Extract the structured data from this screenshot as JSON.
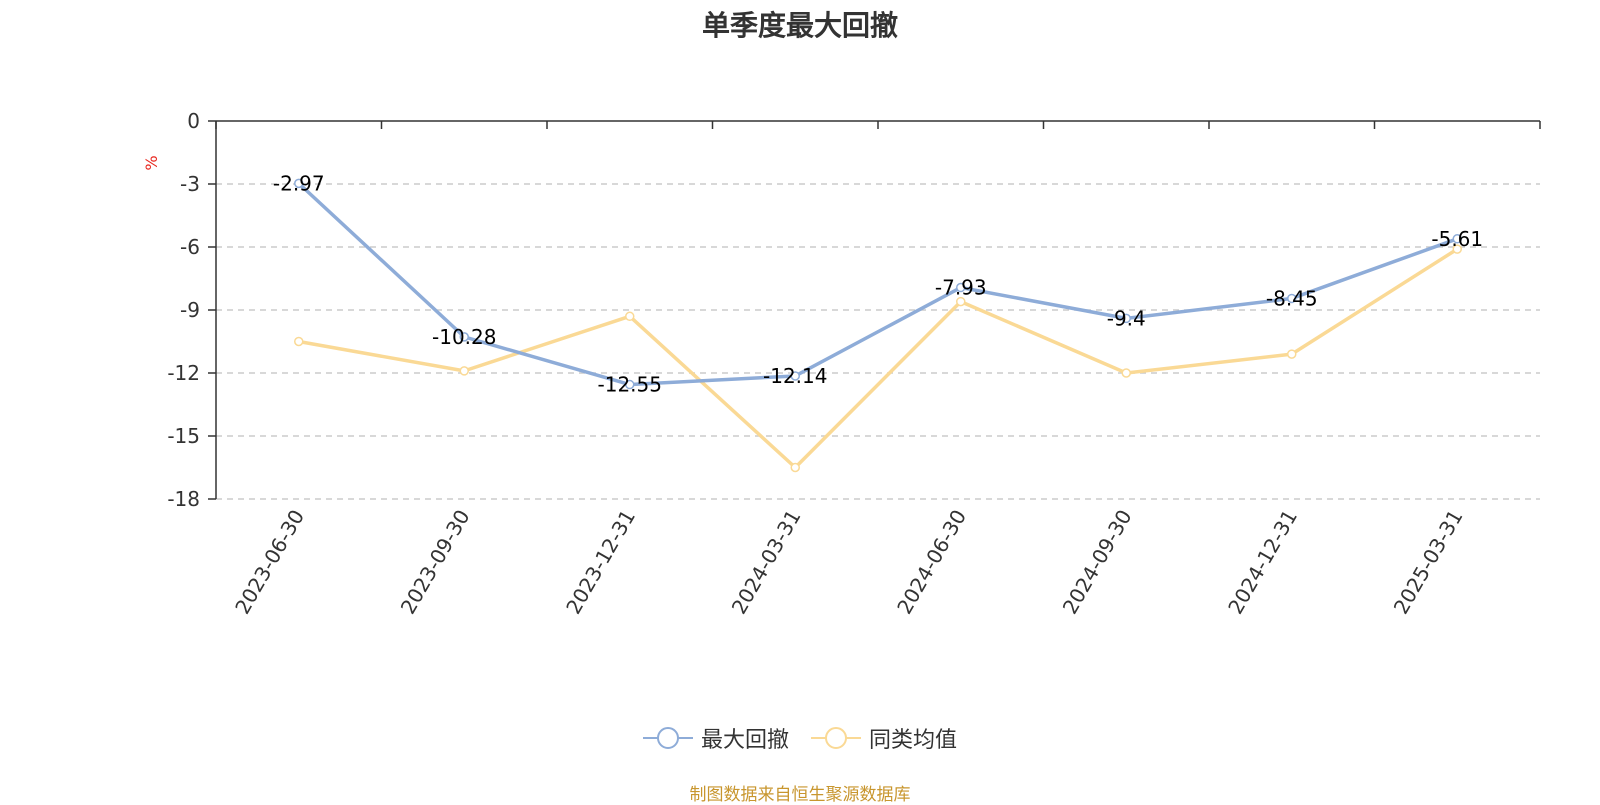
{
  "chart_data": {
    "type": "line",
    "title": "单季度最大回撤",
    "ylabel": "%",
    "xlabel": "",
    "categories": [
      "2023-06-30",
      "2023-09-30",
      "2023-12-31",
      "2024-03-31",
      "2024-06-30",
      "2024-09-30",
      "2024-12-31",
      "2025-03-31"
    ],
    "ylim": [
      -18,
      0
    ],
    "yticks": [
      0,
      -3,
      -6,
      -9,
      -12,
      -15,
      -18
    ],
    "grid": true,
    "legend_position": "bottom",
    "series": [
      {
        "name": "最大回撤",
        "color": "#8eacd8",
        "show_labels": true,
        "values": [
          -2.97,
          -10.28,
          -12.55,
          -12.14,
          -7.93,
          -9.4,
          -8.45,
          -5.61
        ],
        "labels": [
          "-2.97",
          "-10.28",
          "-12.55",
          "-12.14",
          "-7.93",
          "-9.4",
          "-8.45",
          "-5.61"
        ]
      },
      {
        "name": "同类均值",
        "color": "#fad995",
        "show_labels": false,
        "values": [
          -10.5,
          -11.9,
          -9.3,
          -16.5,
          -8.6,
          -12.0,
          -11.1,
          -6.1
        ]
      }
    ]
  },
  "source_note": "制图数据来自恒生聚源数据库",
  "colors": {
    "axis": "#333333",
    "grid": "#cccccc",
    "ylabel": "#e8271f",
    "source": "#c8962e"
  }
}
